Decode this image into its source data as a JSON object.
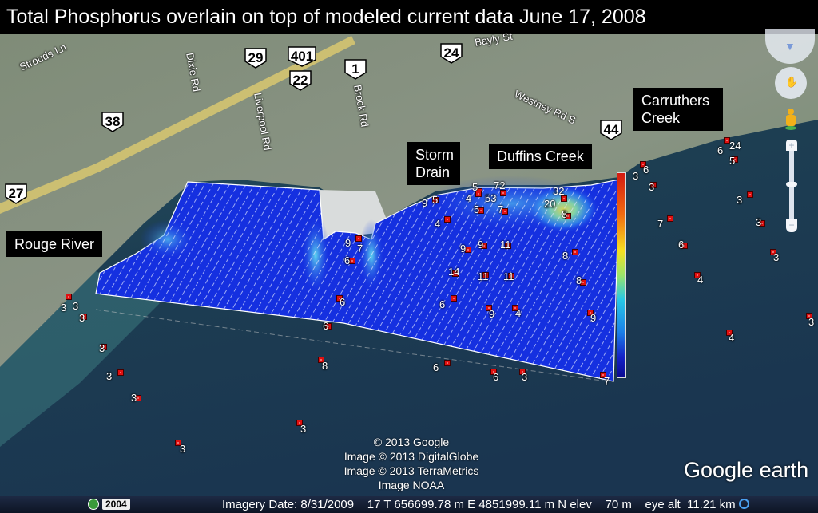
{
  "title": "Total Phosphorus overlain on top of modeled current data June 17, 2008",
  "callouts": {
    "rouge_river": "Rouge River",
    "storm_drain": "Storm Drain",
    "duffins_creek": "Duffins Creek",
    "carruthers_creek": "Carruthers Creek"
  },
  "highway_shields": [
    "29",
    "401",
    "22",
    "1",
    "24",
    "38",
    "27",
    "44"
  ],
  "road_labels": [
    "Strouds Ln",
    "Dixie Rd",
    "Liverpool Rd",
    "Brock Rd",
    "Westney Rd S",
    "Bayly St"
  ],
  "samples": [
    "3",
    "3",
    "3",
    "3",
    "3",
    "3",
    "3",
    "3",
    "8",
    "6",
    "6",
    "6",
    "9",
    "7",
    "5",
    "9",
    "4",
    "5",
    "4",
    "53",
    "72",
    "5",
    "7",
    "32",
    "20",
    "8",
    "9",
    "9",
    "11",
    "8",
    "14",
    "11",
    "11",
    "8",
    "6",
    "9",
    "4",
    "9",
    "6",
    "6",
    "3",
    "7",
    "6",
    "3",
    "3",
    "7",
    "6",
    "4",
    "3",
    "3",
    "3",
    "4",
    "3",
    "6",
    "24",
    "5"
  ],
  "marker_color": "#e01010",
  "legend": {
    "type": "colorbar",
    "colors": [
      "#d41a12",
      "#f6e020",
      "#26c8e6",
      "#0a0a90"
    ]
  },
  "attribution": [
    "© 2013 Google",
    "Image © 2013 DigitalGlobe",
    "Image © 2013 TerraMetrics",
    "Image NOAA"
  ],
  "logo": "Google earth",
  "status_bar": {
    "historical_year": "2004",
    "imagery_date": "Imagery Date: 8/31/2009",
    "coordinates": "17 T 656699.78 m E 4851999.11 m N",
    "elevation": "elev    70 m",
    "eye_alt": "eye alt  11.21 km"
  },
  "controls": [
    "look-joystick",
    "move-joystick",
    "street-view-pegman",
    "zoom-slider"
  ]
}
